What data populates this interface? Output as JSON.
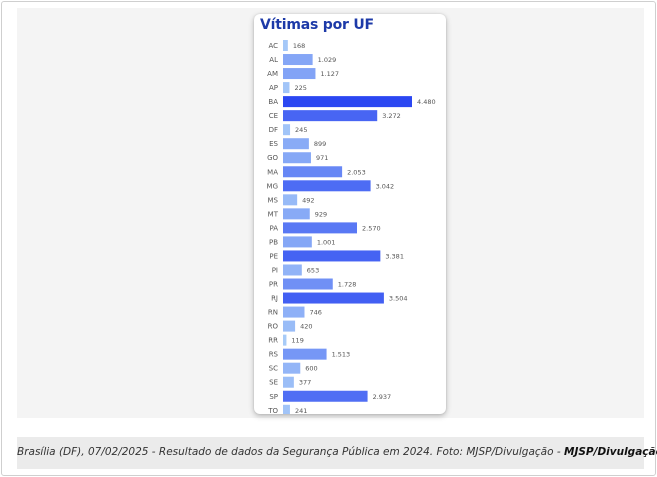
{
  "chart_data": {
    "type": "bar",
    "orientation": "horizontal",
    "title": "Vítimas por UF",
    "categories": [
      "AC",
      "AL",
      "AM",
      "AP",
      "BA",
      "CE",
      "DF",
      "ES",
      "GO",
      "MA",
      "MG",
      "MS",
      "MT",
      "PA",
      "PB",
      "PE",
      "PI",
      "PR",
      "RJ",
      "RN",
      "RO",
      "RR",
      "RS",
      "SC",
      "SE",
      "SP",
      "TO"
    ],
    "values": [
      168,
      1029,
      1127,
      225,
      4480,
      3272,
      245,
      899,
      971,
      2053,
      3042,
      492,
      929,
      2570,
      1001,
      3381,
      653,
      1728,
      3504,
      746,
      420,
      119,
      1513,
      600,
      377,
      2937,
      241
    ],
    "value_labels": [
      "168",
      "1.029",
      "1.127",
      "225",
      "4.480",
      "3.272",
      "245",
      "899",
      "971",
      "2.053",
      "3.042",
      "492",
      "929",
      "2.570",
      "1.001",
      "3.381",
      "653",
      "1.728",
      "3.504",
      "746",
      "420",
      "119",
      "1.513",
      "600",
      "377",
      "2.937",
      "241"
    ],
    "xlim": [
      0,
      4480
    ],
    "grid": false,
    "legend": "none",
    "colors": {
      "low": "#a9cdf8",
      "high": "#2b47f2",
      "title": "#1d3aa8"
    }
  },
  "caption": {
    "text": "Brasília (DF), 07/02/2025 - Resultado de dados da Segurança Pública em 2024. Foto: MJSP/Divulgação - ",
    "credit": "MJSP/Divulgação"
  }
}
